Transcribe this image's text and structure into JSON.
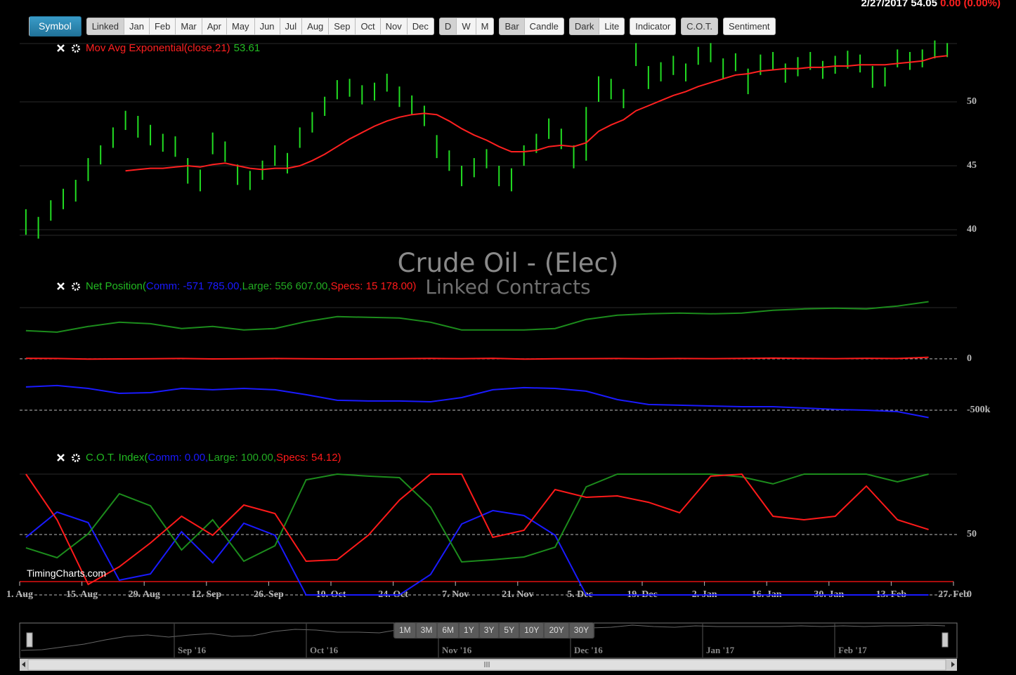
{
  "header": {
    "quote": "2/27/2017 54.05",
    "change": "0.00 (0.00%)"
  },
  "toolbar": [
    [
      {
        "label": "Symbol",
        "primary": true
      }
    ],
    [
      {
        "label": "Linked",
        "selected": true
      },
      {
        "label": "Jan"
      },
      {
        "label": "Feb"
      },
      {
        "label": "Mar"
      },
      {
        "label": "Apr"
      },
      {
        "label": "May"
      },
      {
        "label": "Jun"
      },
      {
        "label": "Jul"
      },
      {
        "label": "Aug"
      },
      {
        "label": "Sep"
      },
      {
        "label": "Oct"
      },
      {
        "label": "Nov"
      },
      {
        "label": "Dec"
      }
    ],
    [
      {
        "label": "D",
        "selected": true
      },
      {
        "label": "W"
      },
      {
        "label": "M"
      }
    ],
    [
      {
        "label": "Bar",
        "selected": true
      },
      {
        "label": "Candle"
      }
    ],
    [
      {
        "label": "Dark",
        "selected": true
      },
      {
        "label": "Lite"
      }
    ],
    [
      {
        "label": "Indicator"
      }
    ],
    [
      {
        "label": "C.O.T.",
        "selected": true
      }
    ],
    [
      {
        "label": "Sentiment"
      }
    ]
  ],
  "watermark": {
    "title": "Crude Oil - (Elec)",
    "subtitle": "Linked Contracts"
  },
  "credit": "TimingCharts.com",
  "chart_data": [
    {
      "type": "ohlc",
      "color": "#22dd22",
      "xlim": [
        0,
        75
      ],
      "ylim": [
        38.9,
        55
      ],
      "yticks": [
        40,
        45,
        50
      ],
      "grid": true,
      "grid_style": "solid",
      "high": [
        41.6,
        41.0,
        42.3,
        43.2,
        43.9,
        45.6,
        46.6,
        48.0,
        49.3,
        48.9,
        48.2,
        47.5,
        47.3,
        45.6,
        44.7,
        47.6,
        46.9,
        45.1,
        44.6,
        45.4,
        46.6,
        46.0,
        48.0,
        49.2,
        50.4,
        51.7,
        51.8,
        51.3,
        51.5,
        52.2,
        51.2,
        50.5,
        49.7,
        47.4,
        46.2,
        45.0,
        45.6,
        46.3,
        45.0,
        44.8,
        46.6,
        47.5,
        48.7,
        47.9,
        46.6,
        49.6,
        52.0,
        51.8,
        51.0,
        54.6,
        52.8,
        53.1,
        53.6,
        53.0,
        54.3,
        54.6,
        53.4,
        53.8,
        52.6,
        53.7,
        53.9,
        53.0,
        53.5,
        53.9,
        53.2,
        53.6,
        54.0,
        53.7,
        52.8,
        52.7,
        54.1,
        53.9,
        54.1,
        54.8,
        54.6
      ],
      "low": [
        39.6,
        39.3,
        40.7,
        41.6,
        42.2,
        43.8,
        45.1,
        46.4,
        47.8,
        47.2,
        46.6,
        46.1,
        45.7,
        43.6,
        43.0,
        45.9,
        45.3,
        43.5,
        43.1,
        43.9,
        45.0,
        44.4,
        46.4,
        47.6,
        48.9,
        50.2,
        50.4,
        49.8,
        50.1,
        50.8,
        49.6,
        49.0,
        48.1,
        45.6,
        44.6,
        43.4,
        44.1,
        44.8,
        43.4,
        43.0,
        45.0,
        46.0,
        47.1,
        46.3,
        44.8,
        45.4,
        50.0,
        50.2,
        49.5,
        52.8,
        51.0,
        51.6,
        52.1,
        51.6,
        52.9,
        53.1,
        51.8,
        52.4,
        50.6,
        52.1,
        52.5,
        51.5,
        52.0,
        52.5,
        51.8,
        52.2,
        52.6,
        52.3,
        51.1,
        51.2,
        52.7,
        52.5,
        52.7,
        53.4,
        53.5
      ],
      "series": [
        {
          "name": "Mov Avg Exponential(close,21)",
          "color": "#ff2020",
          "legend_value_color": "#22bb22",
          "values": [
            null,
            null,
            null,
            null,
            null,
            null,
            null,
            null,
            44.6,
            44.7,
            44.8,
            44.8,
            44.9,
            45.0,
            44.9,
            45.1,
            45.2,
            45.0,
            44.8,
            44.7,
            44.8,
            44.8,
            45.0,
            45.4,
            45.9,
            46.5,
            47.1,
            47.6,
            48.1,
            48.5,
            48.8,
            49.0,
            49.1,
            49.0,
            48.5,
            47.9,
            47.4,
            47.0,
            46.5,
            46.1,
            46.1,
            46.2,
            46.5,
            46.6,
            46.5,
            46.8,
            47.7,
            48.2,
            48.6,
            49.3,
            49.7,
            50.1,
            50.5,
            50.8,
            51.2,
            51.5,
            51.8,
            52.1,
            52.2,
            52.4,
            52.5,
            52.6,
            52.6,
            52.7,
            52.7,
            52.8,
            52.8,
            52.9,
            52.9,
            52.9,
            53.0,
            53.1,
            53.2,
            53.5,
            53.61
          ]
        }
      ]
    },
    {
      "type": "line",
      "xlim": [
        0,
        75
      ],
      "ylim": [
        -620000,
        560000
      ],
      "yticks": [
        0,
        {
          "value": -500000,
          "label": "-500k"
        }
      ],
      "grid": true,
      "grid_style": "dashed",
      "legend": {
        "title": "Net Position(",
        "title_color": "#22bb22",
        "items": [
          "Comm: -571 785.00,",
          "Large: 556 607.00,",
          "Specs: 15 178.00"
        ],
        "close": ")"
      },
      "x": [
        0.5,
        3,
        5.5,
        8,
        10.5,
        13,
        15.5,
        18,
        20.5,
        23,
        25.5,
        28,
        30.5,
        33,
        35.5,
        38,
        40.5,
        43,
        45.5,
        48,
        50.5,
        53,
        55.5,
        58,
        60.5,
        63,
        65.5,
        68,
        70.5,
        73
      ],
      "series": [
        {
          "color": "#1a1aff",
          "values": [
            -274000,
            -260000,
            -288000,
            -336000,
            -329000,
            -288000,
            -301000,
            -288000,
            -301000,
            -349000,
            -404000,
            -411000,
            -411000,
            -418000,
            -377000,
            -301000,
            -281000,
            -288000,
            -315000,
            -397000,
            -445000,
            -452000,
            -459000,
            -466000,
            -466000,
            -479000,
            -493000,
            -500000,
            -514000,
            -571785
          ]
        },
        {
          "color": "#1c8c1c",
          "values": [
            274000,
            260000,
            315000,
            356000,
            342000,
            295000,
            315000,
            281000,
            295000,
            363000,
            411000,
            404000,
            397000,
            356000,
            281000,
            281000,
            281000,
            295000,
            384000,
            425000,
            438000,
            445000,
            438000,
            445000,
            473000,
            486000,
            493000,
            486000,
            514000,
            556607
          ]
        },
        {
          "color": "#ff1a1a",
          "values": [
            5000,
            3000,
            -3000,
            -1000,
            1000,
            3000,
            -1000,
            1000,
            3000,
            1000,
            -1000,
            0,
            2000,
            4000,
            2000,
            5000,
            -3000,
            1000,
            2000,
            3000,
            1000,
            3000,
            2000,
            4000,
            8000,
            4000,
            2000,
            5000,
            3000,
            15178
          ]
        }
      ]
    },
    {
      "type": "line",
      "xlim": [
        0,
        75
      ],
      "ylim": [
        0,
        100
      ],
      "yticks": [
        0,
        50
      ],
      "grid": true,
      "grid_style": "dashed",
      "xticks": [
        {
          "value": 0,
          "label": "1. Aug"
        },
        {
          "value": 5,
          "label": "15. Aug"
        },
        {
          "value": 10,
          "label": "29. Aug"
        },
        {
          "value": 15,
          "label": "12. Sep"
        },
        {
          "value": 20,
          "label": "26. Sep"
        },
        {
          "value": 25,
          "label": "10. Oct"
        },
        {
          "value": 30,
          "label": "24. Oct"
        },
        {
          "value": 35,
          "label": "7. Nov"
        },
        {
          "value": 40,
          "label": "21. Nov"
        },
        {
          "value": 45,
          "label": "5. Dec"
        },
        {
          "value": 50,
          "label": "19. Dec"
        },
        {
          "value": 55,
          "label": "2. Jan"
        },
        {
          "value": 60,
          "label": "16. Jan"
        },
        {
          "value": 65,
          "label": "30. Jan"
        },
        {
          "value": 70,
          "label": "13. Feb"
        },
        {
          "value": 75,
          "label": "27. Feb"
        }
      ],
      "legend": {
        "title": "C.O.T. Index(",
        "title_color": "#22bb22",
        "items": [
          "Comm: 0.00,",
          "Large: 100.00,",
          "Specs: 54.12"
        ],
        "close": ")"
      },
      "x": [
        0.5,
        3,
        5.5,
        8,
        10.5,
        13,
        15.5,
        18,
        20.5,
        23,
        25.5,
        28,
        30.5,
        33,
        35.5,
        38,
        40.5,
        43,
        45.5,
        48,
        50.5,
        53,
        55.5,
        58,
        60.5,
        63,
        65.5,
        68,
        70.5,
        73
      ],
      "series": [
        {
          "color": "#1a1aff",
          "values": [
            47.7,
            68.6,
            59.9,
            12.2,
            17.4,
            52.3,
            26.7,
            59.3,
            49.4,
            0,
            0,
            0,
            0,
            16.9,
            58.7,
            69.8,
            65.7,
            49.4,
            0,
            0,
            0,
            0,
            0,
            0,
            0,
            0,
            0,
            0,
            0,
            0
          ]
        },
        {
          "color": "#1c8c1c",
          "values": [
            39.0,
            30.8,
            50.6,
            83.7,
            73.8,
            37.2,
            62.2,
            27.9,
            40.7,
            95.3,
            100,
            98.3,
            97.1,
            72.7,
            27.3,
            29.1,
            31.4,
            39.5,
            89.5,
            100,
            100,
            100,
            100,
            97.7,
            91.9,
            100,
            100,
            100,
            93.6,
            100
          ]
        },
        {
          "color": "#ff1a1a",
          "values": [
            100,
            62.2,
            8.7,
            23.3,
            43.0,
            65.1,
            49.4,
            74.4,
            67.4,
            27.9,
            29.1,
            49.4,
            78.5,
            100,
            100,
            47.7,
            53.5,
            87.2,
            80.8,
            82.0,
            76.7,
            68.0,
            98.3,
            100,
            65.1,
            62.2,
            65.1,
            90.1,
            62.2,
            54.12
          ]
        }
      ]
    }
  ],
  "navigator": {
    "range_buttons": [
      "1M",
      "3M",
      "6M",
      "1Y",
      "3Y",
      "5Y",
      "10Y",
      "20Y",
      "30Y"
    ],
    "labels": [
      "Sep '16",
      "Oct '16",
      "Nov '16",
      "Dec '16",
      "Jan '17",
      "Feb '17"
    ]
  }
}
